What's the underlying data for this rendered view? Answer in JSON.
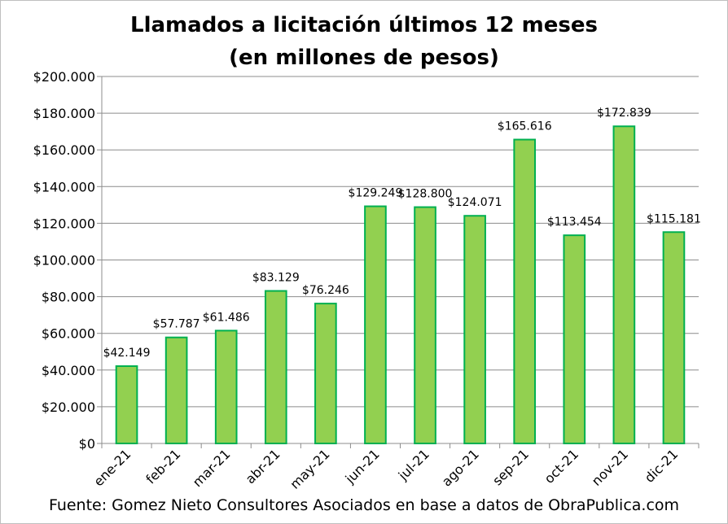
{
  "chart_data": {
    "type": "bar",
    "title": "Llamados a licitación últimos 12 meses",
    "subtitle": "(en millones de pesos)",
    "categories": [
      "ene-21",
      "feb-21",
      "mar-21",
      "abr-21",
      "may-21",
      "jun-21",
      "jul-21",
      "ago-21",
      "sep-21",
      "oct-21",
      "nov-21",
      "dic-21"
    ],
    "values": [
      42149,
      57787,
      61486,
      83129,
      76246,
      129249,
      128800,
      124071,
      165616,
      113454,
      172839,
      115181
    ],
    "data_labels": [
      "$42.149",
      "$57.787",
      "$61.486",
      "$83.129",
      "$76.246",
      "$129.249",
      "$128.800",
      "$124.071",
      "$165.616",
      "$113.454",
      "$172.839",
      "$115.181"
    ],
    "y_ticks": [
      0,
      20000,
      40000,
      60000,
      80000,
      100000,
      120000,
      140000,
      160000,
      180000,
      200000
    ],
    "y_tick_labels": [
      "$0",
      "$20.000",
      "$40.000",
      "$60.000",
      "$80.000",
      "$100.000",
      "$120.000",
      "$140.000",
      "$160.000",
      "$180.000",
      "$200.000"
    ],
    "ylim": [
      0,
      200000
    ],
    "grid": true,
    "bar_fill": "#92d050",
    "bar_stroke": "#00b050",
    "source": "Fuente: Gomez Nieto Consultores Asociados en base a datos de ObraPublica.com"
  }
}
